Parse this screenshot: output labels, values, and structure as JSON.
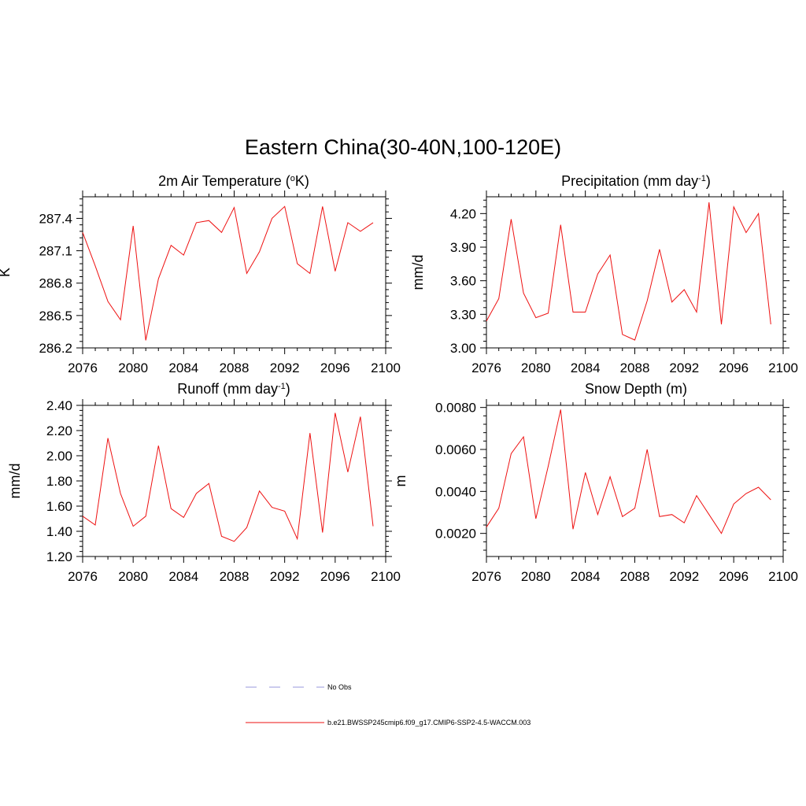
{
  "figure_title": "Eastern China(30-40N,100-120E)",
  "colors": {
    "series": "#ee1111",
    "obs": "#9999dd",
    "axis": "#000000"
  },
  "legend": {
    "obs_label": "No Obs",
    "model_label": "b.e21.BWSSP245cmip6.f09_g17.CMIP6-SSP2-4.5-WACCM.003"
  },
  "panels": [
    {
      "title": "2m Air Temperature (",
      "title_sup": "o",
      "title_end": "K)"
    },
    {
      "title": "Precipitation (mm day",
      "title_sup": "-1",
      "title_end": ")"
    },
    {
      "title": "Runoff (mm day",
      "title_sup": "-1",
      "title_end": ")"
    },
    {
      "title": "Snow Depth (m)",
      "title_sup": "",
      "title_end": ""
    }
  ],
  "chart_data": [
    {
      "type": "line",
      "title": "2m Air Temperature (oK)",
      "xlabel": "",
      "ylabel": "K",
      "xlim": [
        2076,
        2100
      ],
      "ylim": [
        286.2,
        287.6
      ],
      "xticks": [
        2076,
        2080,
        2084,
        2088,
        2092,
        2096,
        2100
      ],
      "xtick_labels": [
        "2076",
        "2080",
        "2084",
        "2088",
        "2092",
        "2096",
        "2100"
      ],
      "yticks": [
        286.2,
        286.5,
        286.8,
        287.1,
        287.4
      ],
      "ytick_labels": [
        "286.2",
        "286.5",
        "286.8",
        "287.1",
        "287.4"
      ],
      "series": [
        {
          "name": "b.e21.BWSSP245cmip6.f09_g17.CMIP6-SSP2-4.5-WACCM.003",
          "x": [
            2076,
            2077,
            2078,
            2079,
            2080,
            2081,
            2082,
            2083,
            2084,
            2085,
            2086,
            2087,
            2088,
            2089,
            2090,
            2091,
            2092,
            2093,
            2094,
            2095,
            2096,
            2097,
            2098,
            2099
          ],
          "values": [
            287.27,
            286.96,
            286.63,
            286.46,
            287.33,
            286.27,
            286.84,
            287.15,
            287.06,
            287.36,
            287.38,
            287.27,
            287.5,
            286.89,
            287.09,
            287.4,
            287.51,
            286.98,
            286.89,
            287.51,
            286.91,
            287.36,
            287.28,
            287.36
          ]
        }
      ]
    },
    {
      "type": "line",
      "title": "Precipitation (mm day-1)",
      "xlabel": "",
      "ylabel": "mm/d",
      "xlim": [
        2076,
        2100
      ],
      "ylim": [
        3.0,
        4.35
      ],
      "xticks": [
        2076,
        2080,
        2084,
        2088,
        2092,
        2096,
        2100
      ],
      "xtick_labels": [
        "2076",
        "2080",
        "2084",
        "2088",
        "2092",
        "2096",
        "2100"
      ],
      "yticks": [
        3.0,
        3.3,
        3.6,
        3.9,
        4.2
      ],
      "ytick_labels": [
        "3.00",
        "3.30",
        "3.60",
        "3.90",
        "4.20"
      ],
      "series": [
        {
          "name": "b.e21.BWSSP245cmip6.f09_g17.CMIP6-SSP2-4.5-WACCM.003",
          "x": [
            2076,
            2077,
            2078,
            2079,
            2080,
            2081,
            2082,
            2083,
            2084,
            2085,
            2086,
            2087,
            2088,
            2089,
            2090,
            2091,
            2092,
            2093,
            2094,
            2095,
            2096,
            2097,
            2098,
            2099
          ],
          "values": [
            3.24,
            3.44,
            4.15,
            3.49,
            3.27,
            3.31,
            4.1,
            3.32,
            3.32,
            3.66,
            3.83,
            3.12,
            3.07,
            3.42,
            3.88,
            3.41,
            3.52,
            3.32,
            4.3,
            3.21,
            4.26,
            4.03,
            4.2,
            3.21
          ]
        }
      ]
    },
    {
      "type": "line",
      "title": "Runoff (mm day-1)",
      "xlabel": "",
      "ylabel": "mm/d",
      "xlim": [
        2076,
        2100
      ],
      "ylim": [
        1.2,
        2.4
      ],
      "xticks": [
        2076,
        2080,
        2084,
        2088,
        2092,
        2096,
        2100
      ],
      "xtick_labels": [
        "2076",
        "2080",
        "2084",
        "2088",
        "2092",
        "2096",
        "2100"
      ],
      "yticks": [
        1.2,
        1.4,
        1.6,
        1.8,
        2.0,
        2.2,
        2.4
      ],
      "ytick_labels": [
        "1.20",
        "1.40",
        "1.60",
        "1.80",
        "2.00",
        "2.20",
        "2.40"
      ],
      "series": [
        {
          "name": "b.e21.BWSSP245cmip6.f09_g17.CMIP6-SSP2-4.5-WACCM.003",
          "x": [
            2076,
            2077,
            2078,
            2079,
            2080,
            2081,
            2082,
            2083,
            2084,
            2085,
            2086,
            2087,
            2088,
            2089,
            2090,
            2091,
            2092,
            2093,
            2094,
            2095,
            2096,
            2097,
            2098,
            2099
          ],
          "values": [
            1.52,
            1.45,
            2.14,
            1.7,
            1.44,
            1.52,
            2.08,
            1.58,
            1.51,
            1.7,
            1.78,
            1.36,
            1.32,
            1.43,
            1.72,
            1.59,
            1.56,
            1.34,
            2.18,
            1.39,
            2.34,
            1.87,
            2.31,
            1.44
          ]
        }
      ]
    },
    {
      "type": "line",
      "title": "Snow Depth (m)",
      "xlabel": "",
      "ylabel": "m",
      "xlim": [
        2076,
        2100
      ],
      "ylim": [
        0.0009,
        0.0081
      ],
      "xticks": [
        2076,
        2080,
        2084,
        2088,
        2092,
        2096,
        2100
      ],
      "xtick_labels": [
        "2076",
        "2080",
        "2084",
        "2088",
        "2092",
        "2096",
        "2100"
      ],
      "yticks": [
        0.002,
        0.004,
        0.006,
        0.008
      ],
      "ytick_labels": [
        "0.0020",
        "0.0040",
        "0.0060",
        "0.0080"
      ],
      "series": [
        {
          "name": "b.e21.BWSSP245cmip6.f09_g17.CMIP6-SSP2-4.5-WACCM.003",
          "x": [
            2076,
            2077,
            2078,
            2079,
            2080,
            2081,
            2082,
            2083,
            2084,
            2085,
            2086,
            2087,
            2088,
            2089,
            2090,
            2091,
            2092,
            2093,
            2094,
            2095,
            2096,
            2097,
            2098,
            2099
          ],
          "values": [
            0.0023,
            0.0032,
            0.0058,
            0.0066,
            0.0027,
            0.0052,
            0.0079,
            0.0022,
            0.0049,
            0.0029,
            0.0047,
            0.0028,
            0.0032,
            0.006,
            0.0028,
            0.0029,
            0.0025,
            0.0038,
            0.0029,
            0.002,
            0.0034,
            0.0039,
            0.0042,
            0.0036
          ]
        }
      ]
    }
  ]
}
